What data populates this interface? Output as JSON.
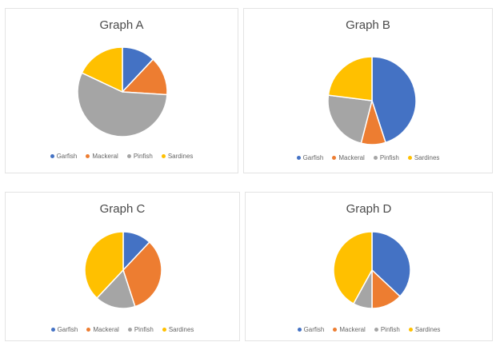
{
  "chart_data": [
    {
      "type": "pie",
      "title": "Graph A",
      "categories": [
        "Garfish",
        "Mackeral",
        "Pinfish",
        "Sardines"
      ],
      "values": [
        12,
        14,
        56,
        18
      ],
      "colors": [
        "#4472C4",
        "#ED7D31",
        "#A5A5A5",
        "#FFC000"
      ],
      "legend": "bottom"
    },
    {
      "type": "pie",
      "title": "Graph B",
      "categories": [
        "Garfish",
        "Mackeral",
        "Pinfish",
        "Sardines"
      ],
      "values": [
        45,
        9,
        23,
        23
      ],
      "colors": [
        "#4472C4",
        "#ED7D31",
        "#A5A5A5",
        "#FFC000"
      ],
      "legend": "bottom"
    },
    {
      "type": "pie",
      "title": "Graph C",
      "categories": [
        "Garfish",
        "Mackeral",
        "Pinfish",
        "Sardines"
      ],
      "values": [
        12,
        33,
        17,
        38
      ],
      "colors": [
        "#4472C4",
        "#ED7D31",
        "#A5A5A5",
        "#FFC000"
      ],
      "legend": "bottom"
    },
    {
      "type": "pie",
      "title": "Graph D",
      "categories": [
        "Garfish",
        "Mackeral",
        "Pinfish",
        "Sardines"
      ],
      "values": [
        37,
        13,
        8,
        42
      ],
      "colors": [
        "#4472C4",
        "#ED7D31",
        "#A5A5A5",
        "#FFC000"
      ],
      "legend": "bottom"
    }
  ]
}
